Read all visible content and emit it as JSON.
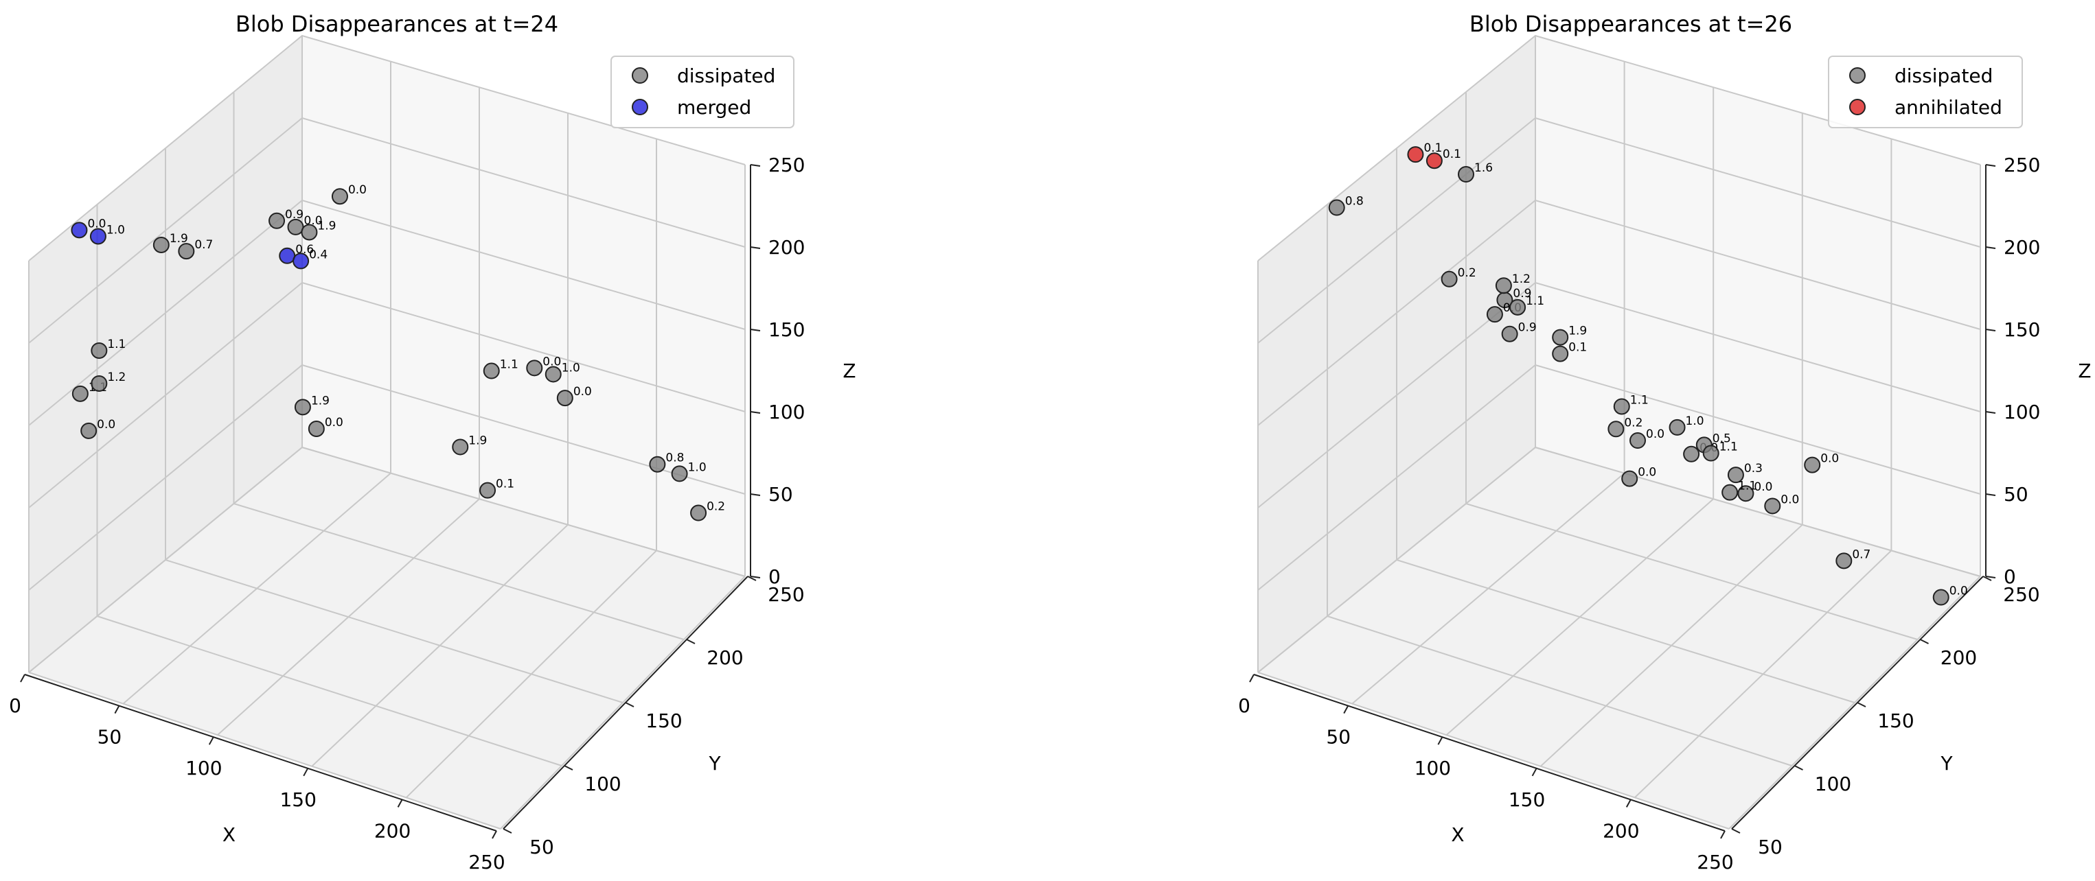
{
  "chart_data": [
    {
      "type": "scatter3d",
      "title": "Blob Disappearances at t=24",
      "xlabel": "X",
      "ylabel": "Y",
      "zlabel": "Z",
      "xlim": [
        0,
        250
      ],
      "ylim": [
        50,
        250
      ],
      "zlim": [
        0,
        250
      ],
      "xticks": [
        "0",
        "50",
        "100",
        "150",
        "200",
        "250"
      ],
      "yticks": [
        "50",
        "100",
        "150",
        "200",
        "250"
      ],
      "zticks": [
        "0",
        "50",
        "100",
        "150",
        "200",
        "250"
      ],
      "grid": true,
      "legend_position": "top-right",
      "series": [
        {
          "name": "dissipated",
          "color": "#808080",
          "points": [
            {
              "x": 30,
              "y": 60,
              "z": 200,
              "label": "1.1"
            },
            {
              "x": 40,
              "y": 110,
              "z": 230,
              "label": "0.7"
            },
            {
              "x": 20,
              "y": 60,
              "z": 170,
              "label": "1.1"
            },
            {
              "x": 30,
              "y": 60,
              "z": 180,
              "label": "1.2"
            },
            {
              "x": 10,
              "y": 80,
              "z": 130,
              "label": "0.0"
            },
            {
              "x": 5,
              "y": 140,
              "z": 200,
              "label": "1.9"
            },
            {
              "x": 30,
              "y": 190,
              "z": 190,
              "label": "0.9"
            },
            {
              "x": 40,
              "y": 190,
              "z": 190,
              "label": "0.0"
            },
            {
              "x": 40,
              "y": 200,
              "z": 180,
              "label": "1.9"
            },
            {
              "x": 20,
              "y": 250,
              "z": 160,
              "label": "0.0"
            },
            {
              "x": 80,
              "y": 140,
              "z": 130,
              "label": "1.9"
            },
            {
              "x": 80,
              "y": 150,
              "z": 110,
              "label": "0.0"
            },
            {
              "x": 180,
              "y": 140,
              "z": 190,
              "label": "1.1"
            },
            {
              "x": 210,
              "y": 130,
              "z": 210,
              "label": "0.0"
            },
            {
              "x": 220,
              "y": 130,
              "z": 210,
              "label": "1.0"
            },
            {
              "x": 120,
              "y": 200,
              "z": 80,
              "label": "1.9"
            },
            {
              "x": 190,
              "y": 180,
              "z": 150,
              "label": "0.0"
            },
            {
              "x": 120,
              "y": 220,
              "z": 40,
              "label": "0.1"
            },
            {
              "x": 210,
              "y": 220,
              "z": 90,
              "label": "0.8"
            },
            {
              "x": 200,
              "y": 250,
              "z": 60,
              "label": "1.0"
            },
            {
              "x": 210,
              "y": 250,
              "z": 40,
              "label": "0.2"
            }
          ]
        },
        {
          "name": "merged",
          "color": "#2222dd",
          "points": [
            {
              "x": 5,
              "y": 80,
              "z": 250,
              "label": "0.0"
            },
            {
              "x": 15,
              "y": 80,
              "z": 250,
              "label": "1.0"
            },
            {
              "x": 50,
              "y": 170,
              "z": 190,
              "label": "0.6"
            },
            {
              "x": 50,
              "y": 180,
              "z": 180,
              "label": "0.4"
            }
          ]
        }
      ]
    },
    {
      "type": "scatter3d",
      "title": "Blob Disappearances at t=26",
      "xlabel": "X",
      "ylabel": "Y",
      "zlabel": "Z",
      "xlim": [
        0,
        250
      ],
      "ylim": [
        50,
        250
      ],
      "zlim": [
        0,
        250
      ],
      "xticks": [
        "0",
        "50",
        "100",
        "150",
        "200",
        "250"
      ],
      "yticks": [
        "50",
        "100",
        "150",
        "200",
        "250"
      ],
      "zticks": [
        "0",
        "50",
        "100",
        "150",
        "200",
        "250"
      ],
      "grid": true,
      "legend_position": "top-right",
      "series": [
        {
          "name": "dissipated",
          "color": "#808080",
          "points": [
            {
              "x": 5,
              "y": 100,
              "z": 250,
              "label": "0.8"
            },
            {
              "x": 190,
              "y": 50,
              "z": 220,
              "label": "0.2"
            },
            {
              "x": 230,
              "y": 50,
              "z": 220,
              "label": "0.0"
            },
            {
              "x": 50,
              "y": 120,
              "z": 210,
              "label": "0.2"
            },
            {
              "x": 200,
              "y": 100,
              "z": 180,
              "label": "0.5"
            },
            {
              "x": 250,
              "y": 110,
              "z": 180,
              "label": "0.0"
            },
            {
              "x": 0,
              "y": 200,
              "z": 200,
              "label": "1.6"
            },
            {
              "x": 50,
              "y": 160,
              "z": 170,
              "label": "0.9"
            },
            {
              "x": 60,
              "y": 150,
              "z": 160,
              "label": "0.9"
            },
            {
              "x": 150,
              "y": 120,
              "z": 150,
              "label": "0.0"
            },
            {
              "x": 200,
              "y": 130,
              "z": 130,
              "label": "0.0"
            },
            {
              "x": 30,
              "y": 180,
              "z": 140,
              "label": "0.0"
            },
            {
              "x": 20,
              "y": 200,
              "z": 140,
              "label": "1.2"
            },
            {
              "x": 20,
              "y": 210,
              "z": 120,
              "label": "1.1"
            },
            {
              "x": 180,
              "y": 150,
              "z": 120,
              "label": "0.3"
            },
            {
              "x": 50,
              "y": 200,
              "z": 120,
              "label": "1.9"
            },
            {
              "x": 50,
              "y": 200,
              "z": 110,
              "label": "0.1"
            },
            {
              "x": 90,
              "y": 190,
              "z": 100,
              "label": "1.1"
            },
            {
              "x": 130,
              "y": 200,
              "z": 80,
              "label": "1.1"
            },
            {
              "x": 140,
              "y": 200,
              "z": 60,
              "label": "1.1"
            },
            {
              "x": 170,
              "y": 190,
              "z": 70,
              "label": "0.0"
            },
            {
              "x": 230,
              "y": 160,
              "z": 80,
              "label": "0.7"
            },
            {
              "x": 90,
              "y": 230,
              "z": 60,
              "label": "1.0"
            },
            {
              "x": 50,
              "y": 250,
              "z": 0,
              "label": "0.0"
            },
            {
              "x": 230,
              "y": 230,
              "z": 10,
              "label": "0.0"
            }
          ]
        },
        {
          "name": "annihilated",
          "color": "#dd2222",
          "points": [
            {
              "x": 10,
              "y": 150,
              "z": 250,
              "label": "0.1"
            },
            {
              "x": 20,
              "y": 150,
              "z": 250,
              "label": "0.1"
            }
          ]
        }
      ]
    }
  ]
}
